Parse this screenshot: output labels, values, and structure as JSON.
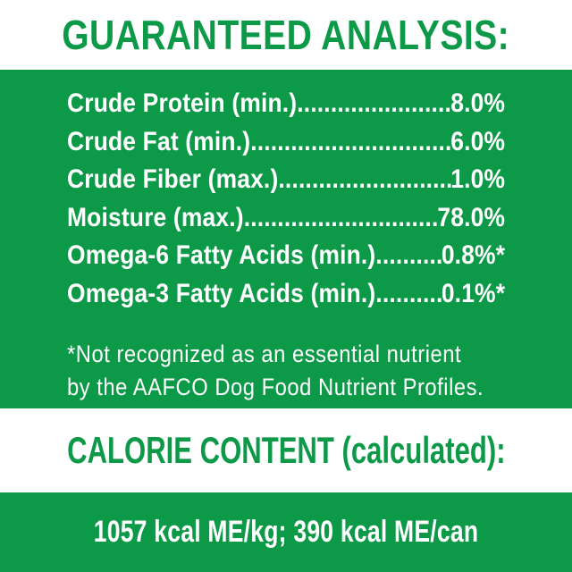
{
  "colors": {
    "green": "#0d9a48",
    "panel_text": "#ffffff",
    "background": "#ffffff"
  },
  "header": {
    "title": "GUARANTEED ANALYSIS:"
  },
  "analysis": {
    "leader_fill": "......................................................",
    "rows": [
      {
        "label": "Crude Protein (min.)",
        "value": "8.0%"
      },
      {
        "label": "Crude Fat (min.)",
        "value": "6.0%"
      },
      {
        "label": "Crude Fiber (max.)",
        "value": "1.0%"
      },
      {
        "label": "Moisture (max.)",
        "value": "78.0%"
      },
      {
        "label": "Omega-6 Fatty Acids (min.)",
        "value": "0.8%*"
      },
      {
        "label": "Omega-3 Fatty Acids (min.)",
        "value": "0.1%*"
      }
    ],
    "footnote": {
      "line1": "*Not recognized as an essential nutrient",
      "line2": "by the AAFCO Dog Food Nutrient Profiles."
    }
  },
  "calorie_content": {
    "title": "CALORIE CONTENT (calculated):",
    "value": "1057 kcal ME/kg; 390 kcal ME/can"
  }
}
